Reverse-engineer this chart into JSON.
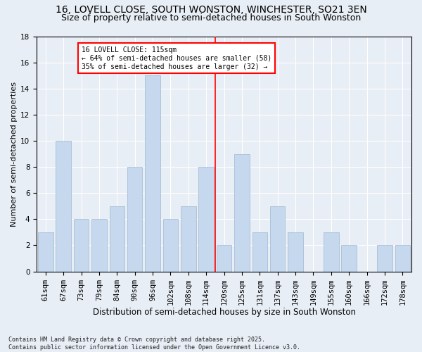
{
  "title1": "16, LOVELL CLOSE, SOUTH WONSTON, WINCHESTER, SO21 3EN",
  "title2": "Size of property relative to semi-detached houses in South Wonston",
  "xlabel": "Distribution of semi-detached houses by size in South Wonston",
  "ylabel": "Number of semi-detached properties",
  "categories": [
    "61sqm",
    "67sqm",
    "73sqm",
    "79sqm",
    "84sqm",
    "90sqm",
    "96sqm",
    "102sqm",
    "108sqm",
    "114sqm",
    "120sqm",
    "125sqm",
    "131sqm",
    "137sqm",
    "143sqm",
    "149sqm",
    "155sqm",
    "160sqm",
    "166sqm",
    "172sqm",
    "178sqm"
  ],
  "values": [
    3,
    10,
    4,
    4,
    5,
    8,
    15,
    4,
    5,
    8,
    2,
    9,
    3,
    5,
    3,
    0,
    3,
    2,
    0,
    2,
    2
  ],
  "bar_color": "#c5d8ed",
  "bar_edge_color": "#a0b8d0",
  "red_line_index": 9.5,
  "annotation_title": "16 LOVELL CLOSE: 115sqm",
  "annotation_line1": "← 64% of semi-detached houses are smaller (58)",
  "annotation_line2": "35% of semi-detached houses are larger (32) →",
  "ylim": [
    0,
    18
  ],
  "yticks": [
    0,
    2,
    4,
    6,
    8,
    10,
    12,
    14,
    16,
    18
  ],
  "background_color": "#e8eef5",
  "footer": "Contains HM Land Registry data © Crown copyright and database right 2025.\nContains public sector information licensed under the Open Government Licence v3.0.",
  "title1_fontsize": 10,
  "title2_fontsize": 9,
  "xlabel_fontsize": 8.5,
  "ylabel_fontsize": 8,
  "tick_fontsize": 7.5,
  "annotation_fontsize": 7,
  "footer_fontsize": 6
}
